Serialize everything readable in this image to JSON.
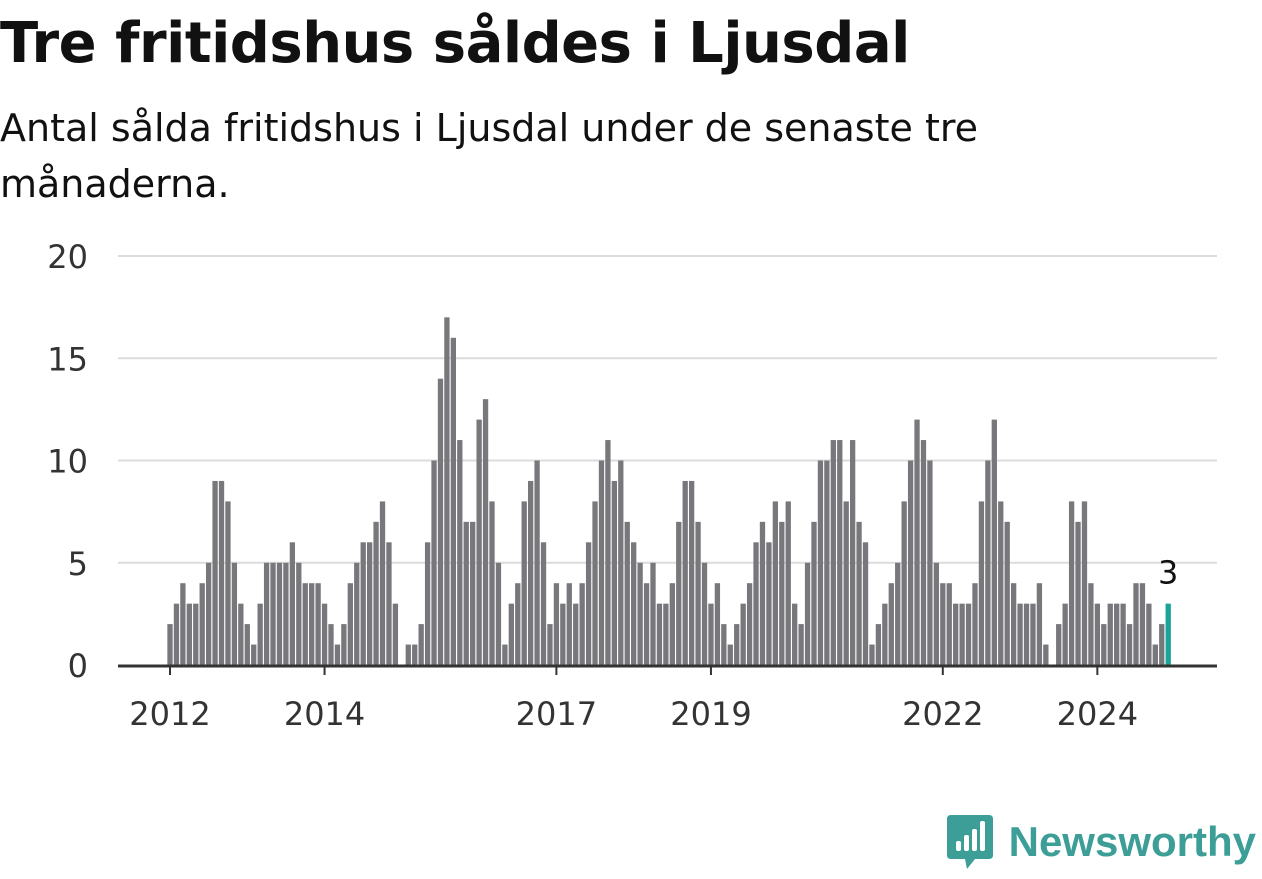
{
  "chart_data": {
    "type": "bar",
    "title": "Tre fritidshus såldes i Ljusdal",
    "subtitle": "Antal sålda fritidshus i Ljusdal under de senaste tre månaderna.",
    "xlabel": "",
    "ylabel": "",
    "ylim": [
      0,
      20
    ],
    "yticks": [
      0,
      5,
      10,
      15,
      20
    ],
    "xticks": [
      {
        "label": "2012",
        "index": 0
      },
      {
        "label": "2014",
        "index": 24
      },
      {
        "label": "2017",
        "index": 60
      },
      {
        "label": "2019",
        "index": 84
      },
      {
        "label": "2022",
        "index": 120
      },
      {
        "label": "2024",
        "index": 144
      }
    ],
    "start": "2012-01",
    "frequency": "monthly",
    "grid": true,
    "legend": "none",
    "colors": {
      "bars": "#78777c",
      "highlight": "#1aa39a",
      "grid": "#dcdcdc",
      "axis": "#333333"
    },
    "values": [
      2,
      3,
      4,
      3,
      3,
      4,
      5,
      9,
      9,
      8,
      5,
      3,
      2,
      1,
      3,
      5,
      5,
      5,
      5,
      6,
      5,
      4,
      4,
      4,
      3,
      2,
      1,
      2,
      4,
      5,
      6,
      6,
      7,
      8,
      6,
      3,
      0,
      1,
      1,
      2,
      6,
      10,
      14,
      17,
      16,
      11,
      7,
      7,
      12,
      13,
      8,
      5,
      1,
      3,
      4,
      8,
      9,
      10,
      6,
      2,
      4,
      3,
      4,
      3,
      4,
      6,
      8,
      10,
      11,
      9,
      10,
      7,
      6,
      5,
      4,
      5,
      3,
      3,
      4,
      7,
      9,
      9,
      7,
      5,
      3,
      4,
      2,
      1,
      2,
      3,
      4,
      6,
      7,
      6,
      8,
      7,
      8,
      3,
      2,
      5,
      7,
      10,
      10,
      11,
      11,
      8,
      11,
      7,
      6,
      1,
      2,
      3,
      4,
      5,
      8,
      10,
      12,
      11,
      10,
      5,
      4,
      4,
      3,
      3,
      3,
      4,
      8,
      10,
      12,
      8,
      7,
      4,
      3,
      3,
      3,
      4,
      1,
      0,
      2,
      3,
      8,
      7,
      8,
      4,
      3,
      2,
      3,
      3,
      3,
      2,
      4,
      4,
      3,
      1,
      2,
      3
    ],
    "annotation": {
      "text": "3"
    }
  },
  "brand": {
    "name": "Newsworthy",
    "icon": "bar-chart-speech-icon"
  }
}
